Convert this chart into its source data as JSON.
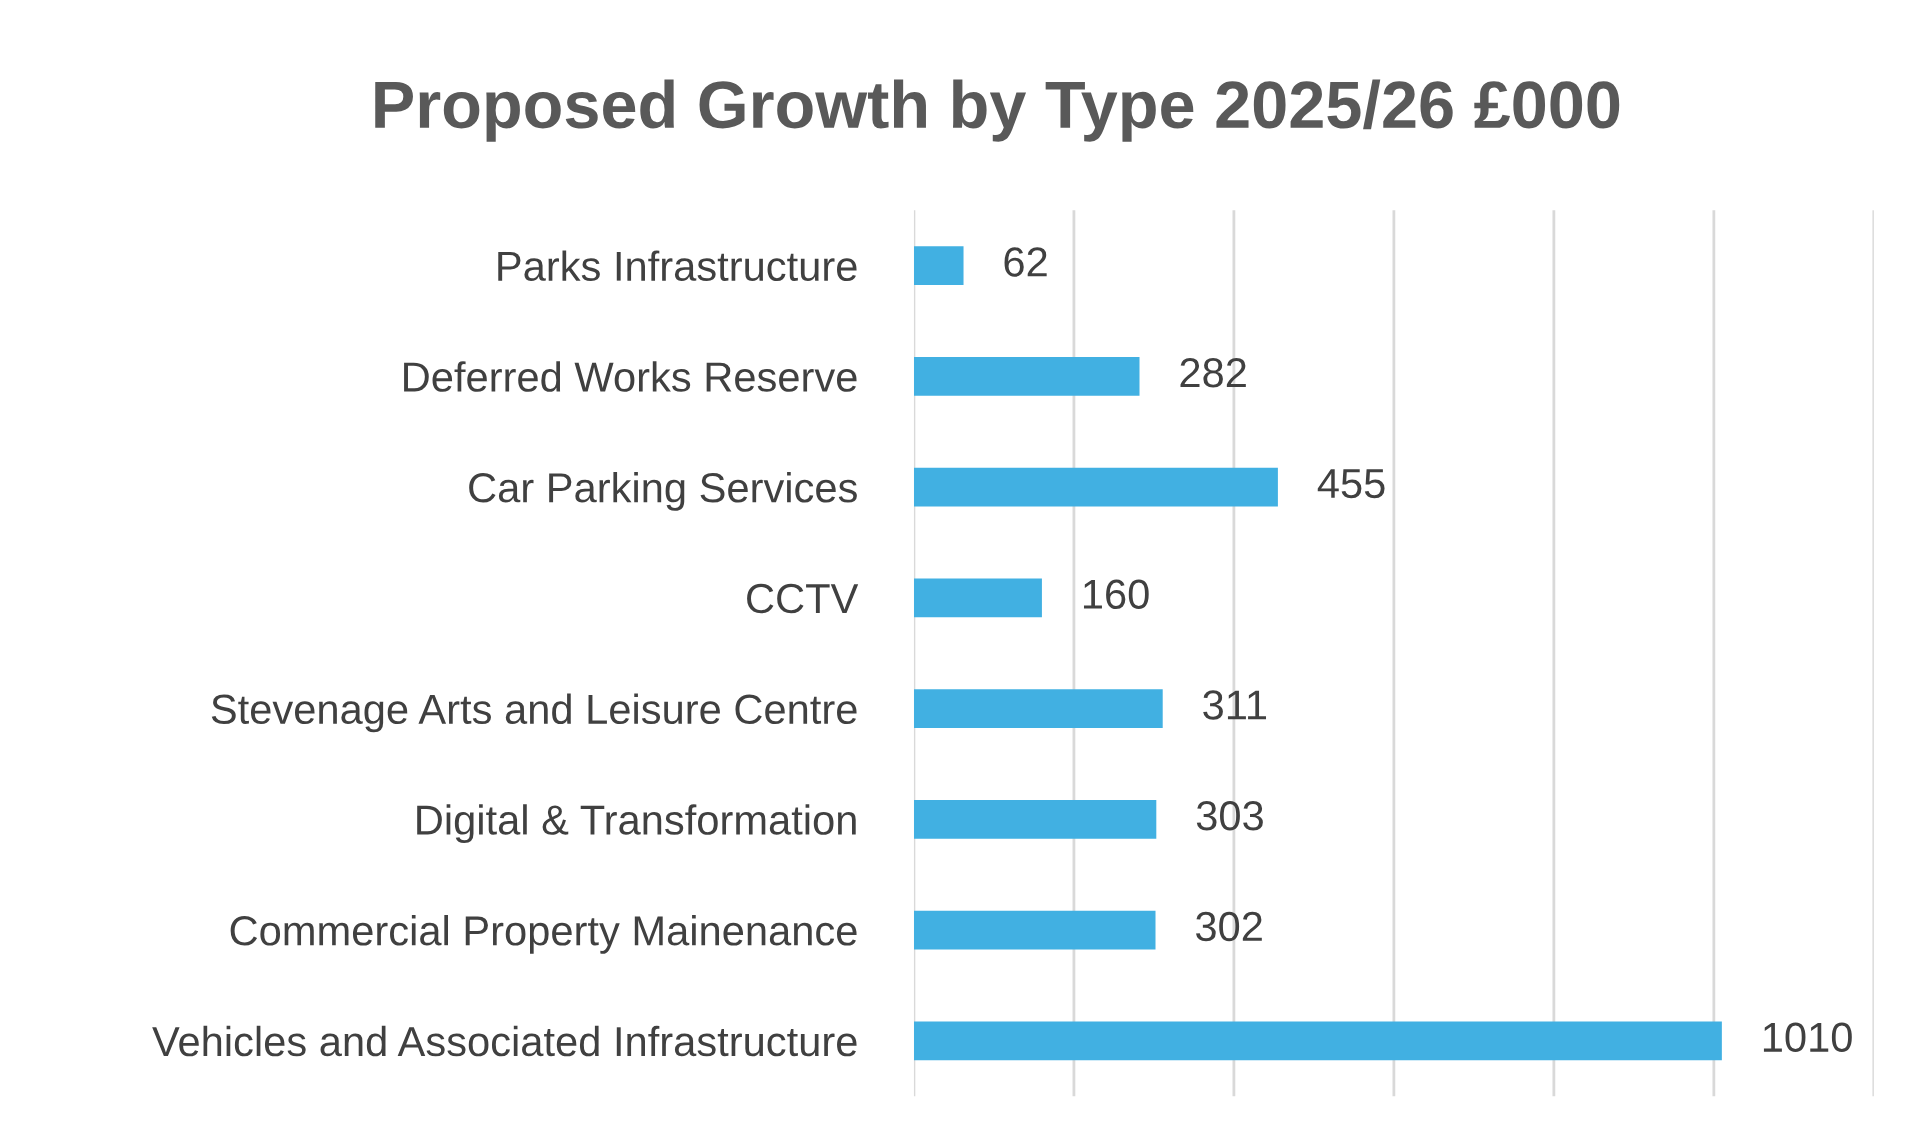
{
  "chart_data": {
    "type": "bar",
    "orientation": "horizontal",
    "title": "Proposed Growth by Type 2025/26 £000",
    "categories": [
      "Parks Infrastructure",
      "Deferred Works Reserve",
      "Car Parking Services",
      "CCTV",
      "Stevenage Arts and Leisure Centre",
      "Digital & Transformation",
      "Commercial Property Mainenance",
      "Vehicles and Associated Infrastructure"
    ],
    "values": [
      62,
      282,
      455,
      160,
      311,
      303,
      302,
      1010
    ],
    "color": "#41b0e2",
    "xlim": [
      0,
      1200
    ],
    "xticks": [
      {
        "value": 0,
        "label": null
      },
      {
        "value": 200,
        "label": null
      },
      {
        "value": 400,
        "label": null
      },
      {
        "value": 600,
        "label": null
      },
      {
        "value": 800,
        "label": null
      },
      {
        "value": 1000,
        "label": null
      },
      {
        "value": 1200,
        "label": null
      }
    ],
    "grid": "x",
    "data_labels": true,
    "tick_labels": "y"
  }
}
